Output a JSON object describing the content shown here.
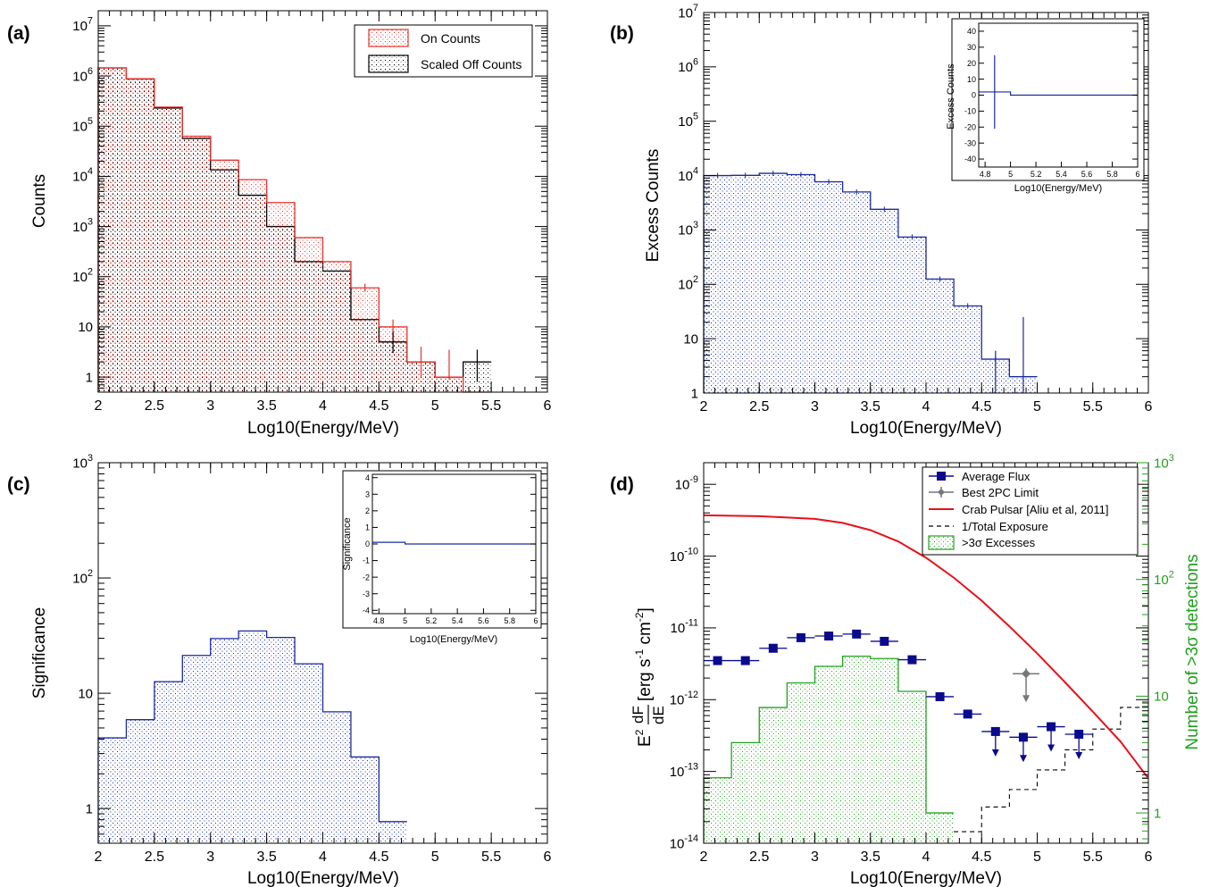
{
  "colors": {
    "on": "#e8322c",
    "off": "#000000",
    "excess": "#1a2aa0",
    "flux": "#0a0a8c",
    "limit": "#777777",
    "crab": "#e8101a",
    "green": "#22a01e"
  },
  "panels": {
    "a": {
      "label": "(a)"
    },
    "b": {
      "label": "(b)"
    },
    "c": {
      "label": "(c)"
    },
    "d": {
      "label": "(d)"
    }
  },
  "chart_data": [
    {
      "id": "a",
      "type": "bar",
      "xlabel": "Log10(Energy/MeV)",
      "ylabel": "Counts",
      "xlim": [
        2,
        6
      ],
      "ylim": [
        0.5,
        20000000
      ],
      "log_y": true,
      "legend_position": "top-right",
      "x_ticks": [
        "2",
        "2.5",
        "3",
        "3.5",
        "4",
        "4.5",
        "5",
        "5.5",
        "6"
      ],
      "bin_edges": [
        2,
        2.25,
        2.5,
        2.75,
        3,
        3.25,
        3.5,
        3.75,
        4,
        4.25,
        4.5,
        4.75,
        5,
        5.25,
        5.5
      ],
      "series": [
        {
          "name": "On Counts",
          "style": "filled-histogram",
          "values": [
            1450000,
            880000,
            240000,
            63000,
            21000,
            8600,
            3000,
            600,
            200,
            60,
            10,
            2,
            1,
            0
          ]
        },
        {
          "name": "Scaled Off Counts",
          "style": "filled-histogram",
          "values": [
            1450000,
            870000,
            230000,
            57000,
            13500,
            4200,
            1000,
            200,
            130,
            14,
            5,
            2,
            1,
            2
          ]
        }
      ]
    },
    {
      "id": "b",
      "type": "bar",
      "xlabel": "Log10(Energy/MeV)",
      "ylabel": "Excess Counts",
      "xlim": [
        2,
        6
      ],
      "ylim": [
        1,
        10000000
      ],
      "log_y": true,
      "x_ticks": [
        "2",
        "2.5",
        "3",
        "3.5",
        "4",
        "4.5",
        "5",
        "5.5",
        "6"
      ],
      "bin_edges": [
        2,
        2.25,
        2.5,
        2.75,
        3,
        3.25,
        3.5,
        3.75,
        4,
        4.25,
        4.5,
        4.75,
        5
      ],
      "values": [
        10000,
        10100,
        11000,
        10400,
        7700,
        5000,
        2400,
        740,
        125,
        40,
        4.2,
        2
      ],
      "error_bars": [
        {
          "x": 4.625,
          "y": 4.2,
          "low": 1,
          "high": 6
        },
        {
          "x": 4.875,
          "y": 2,
          "low": 1,
          "high": 25
        }
      ],
      "inset": {
        "xlabel": "Log10(Energy/MeV)",
        "ylabel": "Excess Counts",
        "xlim": [
          4.75,
          6
        ],
        "ylim": [
          -45,
          45
        ],
        "x_ticks": [
          "4.8",
          "5",
          "5.2",
          "5.4",
          "5.6",
          "5.8",
          "6"
        ],
        "y_ticks": [
          "-40",
          "-30",
          "-20",
          "-10",
          "0",
          "10",
          "20",
          "30",
          "40"
        ],
        "bin_edges": [
          4.75,
          5,
          6
        ],
        "values": [
          2,
          0
        ],
        "error_bar": {
          "x": 4.875,
          "y": 2,
          "low": -21,
          "high": 25
        }
      }
    },
    {
      "id": "c",
      "type": "bar",
      "xlabel": "Log10(Energy/MeV)",
      "ylabel": "Significance",
      "xlim": [
        2,
        6
      ],
      "ylim": [
        0.5,
        1000
      ],
      "log_y": true,
      "x_ticks": [
        "2",
        "2.5",
        "3",
        "3.5",
        "4",
        "4.5",
        "5",
        "5.5",
        "6"
      ],
      "bin_edges": [
        2,
        2.25,
        2.5,
        2.75,
        3,
        3.25,
        3.5,
        3.75,
        4,
        4.25,
        4.5,
        4.75
      ],
      "values": [
        4.1,
        5.9,
        12.6,
        21.3,
        29.8,
        34.7,
        30.5,
        18.0,
        6.9,
        2.8,
        0.77
      ],
      "inset": {
        "xlabel": "Log10(Energy/MeV)",
        "ylabel": "Significance",
        "xlim": [
          4.75,
          6
        ],
        "ylim": [
          -4.2,
          4.2
        ],
        "x_ticks": [
          "4.8",
          "5",
          "5.2",
          "5.4",
          "5.6",
          "5.8",
          "6"
        ],
        "y_ticks": [
          "-4",
          "-3",
          "-2",
          "-1",
          "0",
          "1",
          "2",
          "3",
          "4"
        ],
        "bin_edges": [
          4.75,
          5,
          6
        ],
        "values": [
          0.1,
          0
        ]
      }
    },
    {
      "id": "d",
      "type": "scatter",
      "xlabel": "Log10(Energy/MeV)",
      "ylabel": "E²dF/dE [erg s⁻¹ cm⁻²]",
      "y2label": "Number of >3σ detections",
      "xlim": [
        2,
        6
      ],
      "ylim": [
        1e-14,
        2e-09
      ],
      "y2lim": [
        0.55,
        1000
      ],
      "log_y": true,
      "legend_position": "top-right",
      "x_ticks": [
        "2",
        "2.5",
        "3",
        "3.5",
        "4",
        "4.5",
        "5",
        "5.5",
        "6"
      ],
      "average_flux": {
        "name": "Average Flux",
        "x": [
          2.125,
          2.375,
          2.625,
          2.875,
          3.125,
          3.375,
          3.625,
          3.875,
          4.125,
          4.375,
          4.625,
          4.875,
          5.125,
          5.375
        ],
        "y": [
          3.5e-12,
          3.5e-12,
          5.2e-12,
          7.3e-12,
          7.7e-12,
          8.2e-12,
          6.5e-12,
          3.6e-12,
          1.1e-12,
          6.3e-13,
          3.6e-13,
          3e-13,
          4.2e-13,
          3.3e-13
        ],
        "upper_limit": [
          false,
          false,
          false,
          false,
          false,
          false,
          false,
          false,
          false,
          false,
          true,
          true,
          true,
          true
        ]
      },
      "best_2pc_limit": {
        "name": "Best 2PC Limit",
        "x": 4.9,
        "y": 2.3e-12
      },
      "crab_pulsar": {
        "name": "Crab Pulsar [Aliu et al, 2011]",
        "x": [
          2.0,
          2.5,
          3.0,
          3.25,
          3.5,
          3.75,
          4.0,
          4.25,
          4.5,
          4.75,
          5.0,
          5.25,
          5.5,
          5.75,
          6.0
        ],
        "y": [
          3.7e-10,
          3.6e-10,
          3.3e-10,
          2.9e-10,
          2.3e-10,
          1.6e-10,
          9.5e-11,
          5e-11,
          2.4e-11,
          1.05e-11,
          4.4e-12,
          1.75e-12,
          6.8e-13,
          2.6e-13,
          8e-14
        ]
      },
      "total_exposure": {
        "name": "1/Total Exposure",
        "bin_edges": [
          4.25,
          4.5,
          4.75,
          5.0,
          5.25,
          5.5,
          5.75,
          6.0
        ],
        "values": [
          1.45e-14,
          3.2e-14,
          5.6e-14,
          1.05e-13,
          2e-13,
          3.9e-13,
          7.8e-13
        ]
      },
      "excesses_3sigma": {
        "name": ">3σ Excesses",
        "axis": "right",
        "bin_edges": [
          2.0,
          2.25,
          2.5,
          2.75,
          3.0,
          3.25,
          3.5,
          3.75,
          4.0,
          4.25
        ],
        "values": [
          2,
          4,
          8,
          13,
          18,
          22,
          21,
          11,
          1
        ]
      }
    }
  ]
}
